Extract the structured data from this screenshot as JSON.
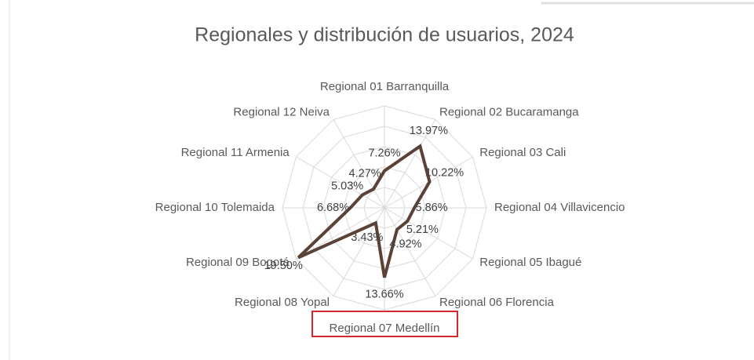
{
  "chart_data": {
    "type": "radar",
    "title": "Regionales y distribución de usuarios, 2024",
    "categories": [
      "Regional 01 Barranquilla",
      "Regional 02 Bucaramanga",
      "Regional 03 Cali",
      "Regional 04 Villavicencio",
      "Regional 05 Ibagué",
      "Regional 06 Florencia",
      "Regional 07 Medellín",
      "Regional 08 Yopal",
      "Regional 09 Bogotá",
      "Regional 10 Tolemaida",
      "Regional 11 Armenia",
      "Regional 12 Neiva"
    ],
    "values": [
      7.26,
      13.97,
      10.22,
      5.86,
      5.21,
      4.92,
      13.66,
      3.43,
      19.5,
      6.68,
      5.03,
      4.27
    ],
    "value_labels": [
      "7.26%",
      "13.97%",
      "10.22%",
      "5.86%",
      "5.21%",
      "4.92%",
      "13.66%",
      "3.43%",
      "19.50%",
      "6.68%",
      "5.03%",
      "4.27%"
    ],
    "color": "#5b4237",
    "rlim": [
      0,
      20
    ],
    "rticks": [
      0,
      4,
      8,
      12,
      16,
      20
    ],
    "grid": true
  }
}
